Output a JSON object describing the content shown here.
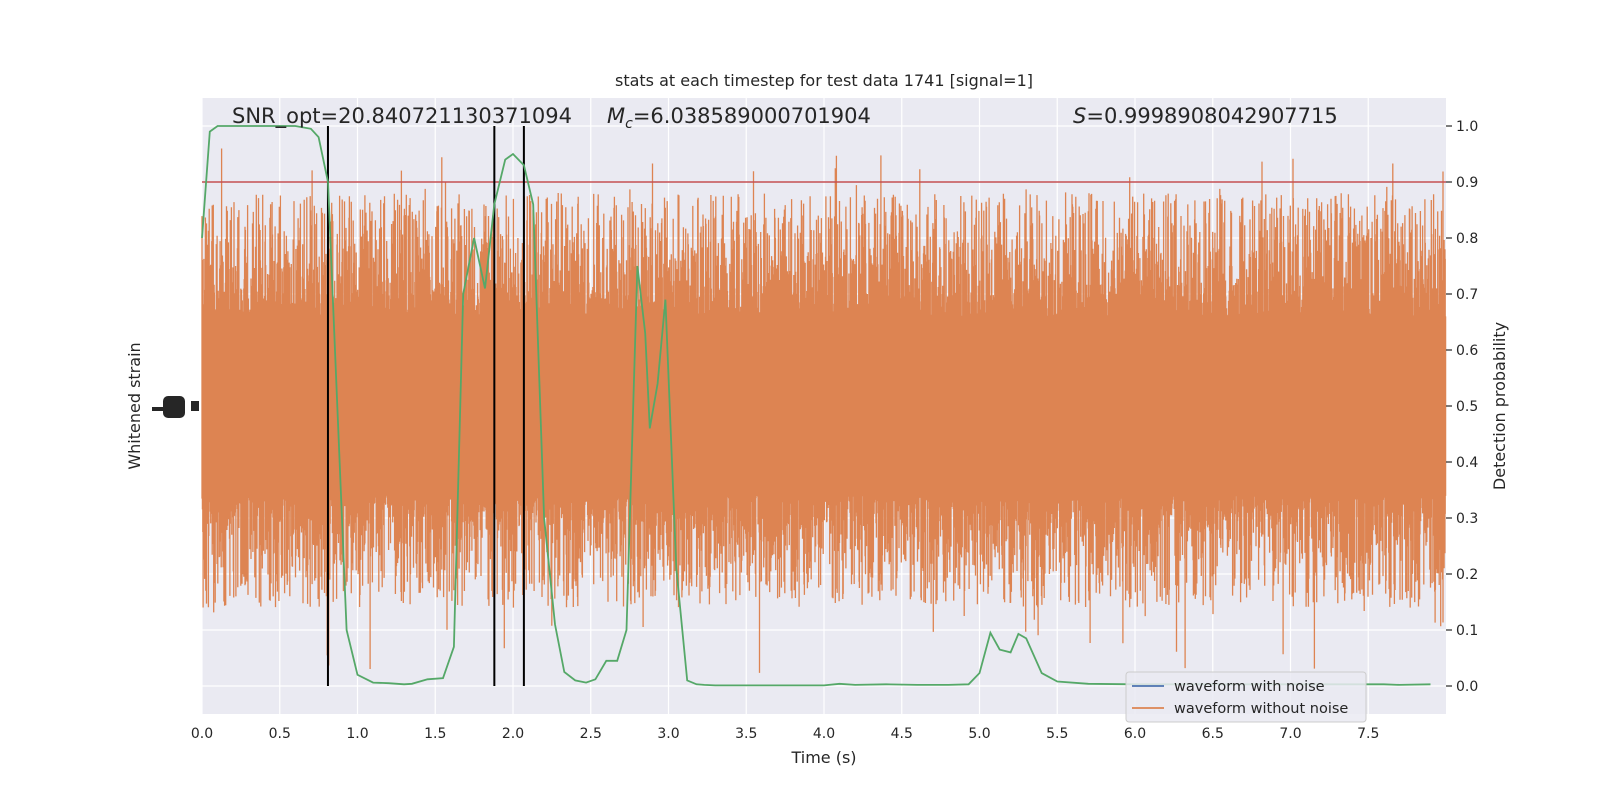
{
  "chart_data": {
    "type": "line",
    "title": "stats at each timestep for test data 1741 [signal=1]",
    "xlabel": "Time (s)",
    "ylabel_left": "Whitened strain",
    "ylabel_right": "Detection probability",
    "xlim": [
      0,
      8
    ],
    "ylim_right": [
      -0.05,
      1.05
    ],
    "x_ticks": [
      "0.0",
      "0.5",
      "1.0",
      "1.5",
      "2.0",
      "2.5",
      "3.0",
      "3.5",
      "4.0",
      "4.5",
      "5.0",
      "5.5",
      "6.0",
      "6.5",
      "7.0",
      "7.5"
    ],
    "y_ticks_right": [
      "0.0",
      "0.1",
      "0.2",
      "0.3",
      "0.4",
      "0.5",
      "0.6",
      "0.7",
      "0.8",
      "0.9",
      "1.0"
    ],
    "grid": true,
    "legend_position": "lower right",
    "annotations": {
      "snr": "SNR_opt=20.840721130371094",
      "mc_symbol": "M",
      "mc_sub": "c",
      "mc_value": "=6.038589000701904",
      "s_symbol": "S",
      "s_value": "=0.9998908042907715"
    },
    "threshold": {
      "value": 0.9,
      "color": "#c44e52"
    },
    "vertical_lines": [
      0.81,
      1.88,
      2.07
    ],
    "series": [
      {
        "name": "waveform with noise",
        "color": "#4c72b0"
      },
      {
        "name": "waveform without noise",
        "color": "#dd8452"
      },
      {
        "color": "#55a868",
        "x": [
          0,
          0.05,
          0.1,
          0.2,
          0.3,
          0.4,
          0.5,
          0.6,
          0.7,
          0.75,
          0.81,
          0.87,
          0.93,
          1.0,
          1.1,
          1.2,
          1.3,
          1.35,
          1.45,
          1.55,
          1.62,
          1.68,
          1.75,
          1.82,
          1.88,
          1.95,
          2.0,
          2.07,
          2.13,
          2.2,
          2.27,
          2.33,
          2.4,
          2.47,
          2.53,
          2.6,
          2.67,
          2.73,
          2.8,
          2.85,
          2.88,
          2.93,
          2.98,
          3.05,
          3.12,
          3.18,
          3.23,
          3.3,
          3.5,
          3.7,
          4.0,
          4.1,
          4.2,
          4.4,
          4.6,
          4.8,
          4.93,
          5.0,
          5.07,
          5.13,
          5.2,
          5.25,
          5.3,
          5.4,
          5.5,
          5.7,
          6.0,
          6.5,
          7.0,
          7.5,
          7.6,
          7.7,
          7.9
        ],
        "y": [
          0.8,
          0.99,
          1.0,
          1.0,
          1.0,
          1.0,
          1.0,
          1.0,
          0.995,
          0.98,
          0.9,
          0.5,
          0.1,
          0.02,
          0.006,
          0.005,
          0.003,
          0.004,
          0.012,
          0.014,
          0.07,
          0.7,
          0.8,
          0.71,
          0.86,
          0.94,
          0.95,
          0.93,
          0.86,
          0.3,
          0.11,
          0.025,
          0.01,
          0.006,
          0.012,
          0.045,
          0.045,
          0.1,
          0.75,
          0.63,
          0.46,
          0.54,
          0.69,
          0.21,
          0.01,
          0.003,
          0.002,
          0.001,
          0.001,
          0.001,
          0.001,
          0.004,
          0.002,
          0.003,
          0.002,
          0.002,
          0.003,
          0.023,
          0.095,
          0.065,
          0.06,
          0.093,
          0.085,
          0.023,
          0.008,
          0.004,
          0.003,
          0.003,
          0.003,
          0.003,
          0.003,
          0.002,
          0.003
        ]
      }
    ],
    "noise": {
      "samples": 3300,
      "band_lo": 0.34,
      "band_hi": 0.66,
      "spike_max": 0.96,
      "spike_min": 0.02,
      "seed": 1741
    }
  }
}
